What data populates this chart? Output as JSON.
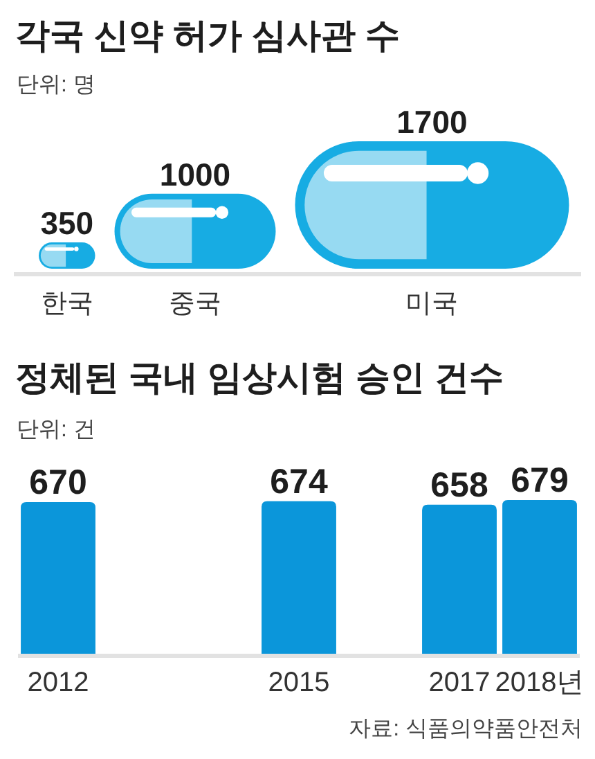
{
  "chart_data": [
    {
      "type": "other",
      "title": "각국 신약 허가 심사관 수",
      "subtitle": "단위: 명",
      "categories": [
        "한국",
        "중국",
        "미국"
      ],
      "values": [
        350,
        1000,
        1700
      ],
      "color": "#17ace3",
      "data_labels": true
    },
    {
      "type": "bar",
      "title": "정체된 국내 임상시험 승인 건수",
      "subtitle": "단위: 건",
      "x": [
        2012,
        2015,
        2017,
        2018
      ],
      "values": [
        670,
        674,
        658,
        679
      ],
      "color": "#0b96da",
      "xlim": [
        2011.5,
        2018.5
      ],
      "xticks": [
        2012,
        2015,
        2017,
        {
          "value": 2018,
          "label": "2018년"
        }
      ],
      "tick_labels": "x",
      "data_labels": true,
      "annotations": [
        "자료: 식품의약품안전처"
      ]
    }
  ]
}
